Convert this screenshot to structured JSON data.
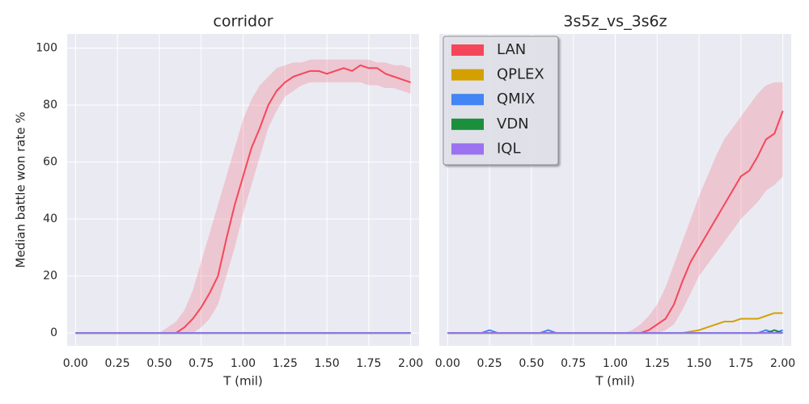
{
  "chart_data": [
    {
      "type": "line",
      "title": "corridor",
      "xlabel": "T (mil)",
      "ylabel": "Median battle won rate %",
      "x": [
        0,
        0.05,
        0.1,
        0.15,
        0.2,
        0.25,
        0.3,
        0.35,
        0.4,
        0.45,
        0.5,
        0.55,
        0.6,
        0.65,
        0.7,
        0.75,
        0.8,
        0.85,
        0.9,
        0.95,
        1.0,
        1.05,
        1.1,
        1.15,
        1.2,
        1.25,
        1.3,
        1.35,
        1.4,
        1.45,
        1.5,
        1.55,
        1.6,
        1.65,
        1.7,
        1.75,
        1.8,
        1.85,
        1.9,
        1.95,
        2.0
      ],
      "xlim": [
        -0.05,
        2.05
      ],
      "ylim": [
        -4.5,
        105
      ],
      "xticks": [
        {
          "value": 0,
          "label": "0.00"
        },
        {
          "value": 0.25,
          "label": "0.25"
        },
        {
          "value": 0.5,
          "label": "0.50"
        },
        {
          "value": 0.75,
          "label": "0.75"
        },
        {
          "value": 1,
          "label": "1.00"
        },
        {
          "value": 1.25,
          "label": "1.25"
        },
        {
          "value": 1.5,
          "label": "1.50"
        },
        {
          "value": 1.75,
          "label": "1.75"
        },
        {
          "value": 2,
          "label": "2.00"
        }
      ],
      "yticks": [
        0,
        20,
        40,
        60,
        80,
        100
      ],
      "grid": true,
      "series": [
        {
          "name": "LAN",
          "color": "#f5475a",
          "values": [
            0,
            0,
            0,
            0,
            0,
            0,
            0,
            0,
            0,
            0,
            0,
            0,
            0,
            2,
            5,
            9,
            14,
            20,
            33,
            45,
            55,
            65,
            72,
            80,
            85,
            88,
            90,
            91,
            92,
            92,
            91,
            92,
            93,
            92,
            94,
            93,
            93,
            91,
            90,
            89,
            88
          ],
          "lower": [
            0,
            0,
            0,
            0,
            0,
            0,
            0,
            0,
            0,
            0,
            0,
            0,
            0,
            0,
            0,
            2,
            5,
            10,
            20,
            30,
            42,
            52,
            62,
            72,
            78,
            83,
            85,
            87,
            88,
            88,
            88,
            88,
            88,
            88,
            88,
            87,
            87,
            86,
            86,
            85,
            84
          ],
          "upper": [
            0,
            0,
            0,
            0,
            0,
            0,
            0,
            0,
            0,
            0,
            0,
            2,
            4,
            8,
            15,
            25,
            35,
            45,
            55,
            65,
            75,
            82,
            87,
            90,
            93,
            94,
            95,
            95,
            96,
            96,
            96,
            96,
            96,
            96,
            96,
            96,
            95,
            95,
            94,
            94,
            93
          ]
        },
        {
          "name": "QPLEX",
          "color": "#d4a000",
          "values": [
            0,
            0,
            0,
            0,
            0,
            0,
            0,
            0,
            0,
            0,
            0,
            0,
            0,
            0,
            0,
            0,
            0,
            0,
            0,
            0,
            0,
            0,
            0,
            0,
            0,
            0,
            0,
            0,
            0,
            0,
            0,
            0,
            0,
            0,
            0,
            0,
            0,
            0,
            0,
            0,
            0
          ]
        },
        {
          "name": "QMIX",
          "color": "#4285f4",
          "values": [
            0,
            0,
            0,
            0,
            0,
            0,
            0,
            0,
            0,
            0,
            0,
            0,
            0,
            0,
            0,
            0,
            0,
            0,
            0,
            0,
            0,
            0,
            0,
            0,
            0,
            0,
            0,
            0,
            0,
            0,
            0,
            0,
            0,
            0,
            0,
            0,
            0,
            0,
            0,
            0,
            0
          ]
        },
        {
          "name": "VDN",
          "color": "#1a8f3c",
          "values": [
            0,
            0,
            0,
            0,
            0,
            0,
            0,
            0,
            0,
            0,
            0,
            0,
            0,
            0,
            0,
            0,
            0,
            0,
            0,
            0,
            0,
            0,
            0,
            0,
            0,
            0,
            0,
            0,
            0,
            0,
            0,
            0,
            0,
            0,
            0,
            0,
            0,
            0,
            0,
            0,
            0
          ]
        },
        {
          "name": "IQL",
          "color": "#9b72f0",
          "values": [
            0,
            0,
            0,
            0,
            0,
            0,
            0,
            0,
            0,
            0,
            0,
            0,
            0,
            0,
            0,
            0,
            0,
            0,
            0,
            0,
            0,
            0,
            0,
            0,
            0,
            0,
            0,
            0,
            0,
            0,
            0,
            0,
            0,
            0,
            0,
            0,
            0,
            0,
            0,
            0,
            0
          ]
        }
      ]
    },
    {
      "type": "line",
      "title": "3s5z_vs_3s6z",
      "xlabel": "T (mil)",
      "legend": "upper left",
      "x": [
        0,
        0.05,
        0.1,
        0.15,
        0.2,
        0.25,
        0.3,
        0.35,
        0.4,
        0.45,
        0.5,
        0.55,
        0.6,
        0.65,
        0.7,
        0.75,
        0.8,
        0.85,
        0.9,
        0.95,
        1.0,
        1.05,
        1.1,
        1.15,
        1.2,
        1.25,
        1.3,
        1.35,
        1.4,
        1.45,
        1.5,
        1.55,
        1.6,
        1.65,
        1.7,
        1.75,
        1.8,
        1.85,
        1.9,
        1.95,
        2.0
      ],
      "xlim": [
        -0.05,
        2.05
      ],
      "ylim": [
        -4.5,
        105
      ],
      "xticks": [
        {
          "value": 0,
          "label": "0.00"
        },
        {
          "value": 0.25,
          "label": "0.25"
        },
        {
          "value": 0.5,
          "label": "0.50"
        },
        {
          "value": 0.75,
          "label": "0.75"
        },
        {
          "value": 1,
          "label": "1.00"
        },
        {
          "value": 1.25,
          "label": "1.25"
        },
        {
          "value": 1.5,
          "label": "1.50"
        },
        {
          "value": 1.75,
          "label": "1.75"
        },
        {
          "value": 2,
          "label": "2.00"
        }
      ],
      "grid": true,
      "series": [
        {
          "name": "LAN",
          "color": "#f5475a",
          "values": [
            0,
            0,
            0,
            0,
            0,
            0,
            0,
            0,
            0,
            0,
            0,
            0,
            0,
            0,
            0,
            0,
            0,
            0,
            0,
            0,
            0,
            0,
            0,
            0,
            1,
            3,
            5,
            10,
            18,
            25,
            30,
            35,
            40,
            45,
            50,
            55,
            57,
            62,
            68,
            70,
            78
          ],
          "lower": [
            0,
            0,
            0,
            0,
            0,
            0,
            0,
            0,
            0,
            0,
            0,
            0,
            0,
            0,
            0,
            0,
            0,
            0,
            0,
            0,
            0,
            0,
            0,
            0,
            0,
            0,
            1,
            3,
            8,
            14,
            20,
            24,
            28,
            32,
            36,
            40,
            43,
            46,
            50,
            52,
            55
          ],
          "upper": [
            0,
            0,
            0,
            0,
            0,
            0,
            0,
            0,
            0,
            0,
            0,
            0,
            0,
            0,
            0,
            0,
            0,
            0,
            0,
            0,
            0,
            0,
            1,
            3,
            6,
            10,
            16,
            24,
            32,
            40,
            48,
            55,
            62,
            68,
            72,
            76,
            80,
            84,
            87,
            88,
            88
          ]
        },
        {
          "name": "QPLEX",
          "color": "#d4a000",
          "values": [
            0,
            0,
            0,
            0,
            0,
            0,
            0,
            0,
            0,
            0,
            0,
            0,
            0,
            0,
            0,
            0,
            0,
            0,
            0,
            0,
            0,
            0,
            0,
            0,
            0,
            0,
            0,
            0,
            0,
            0.5,
            1,
            2,
            3,
            4,
            4,
            5,
            5,
            5,
            6,
            7,
            7
          ]
        },
        {
          "name": "QMIX",
          "color": "#4285f4",
          "values": [
            0,
            0,
            0,
            0,
            0,
            1,
            0,
            0,
            0,
            0,
            0,
            0,
            1,
            0,
            0,
            0,
            0,
            0,
            0,
            0,
            0,
            0,
            0,
            0,
            0,
            0,
            0,
            0,
            0,
            0,
            0,
            0,
            0,
            0,
            0,
            0,
            0,
            0,
            1,
            0,
            1
          ]
        },
        {
          "name": "VDN",
          "color": "#1a8f3c",
          "values": [
            0,
            0,
            0,
            0,
            0,
            0,
            0,
            0,
            0,
            0,
            0,
            0,
            0,
            0,
            0,
            0,
            0,
            0,
            0,
            0,
            0,
            0,
            0,
            0,
            0,
            0,
            0,
            0,
            0,
            0,
            0,
            0,
            0,
            0,
            0,
            0,
            0,
            0,
            0,
            1,
            0
          ]
        },
        {
          "name": "IQL",
          "color": "#9b72f0",
          "values": [
            0,
            0,
            0,
            0,
            0,
            0,
            0,
            0,
            0,
            0,
            0,
            0,
            0,
            0,
            0,
            0,
            0,
            0,
            0,
            0,
            0,
            0,
            0,
            0,
            0,
            0,
            0,
            0,
            0,
            0,
            0,
            0,
            0,
            0,
            0,
            0,
            0,
            0,
            0,
            0,
            0
          ]
        }
      ]
    }
  ]
}
